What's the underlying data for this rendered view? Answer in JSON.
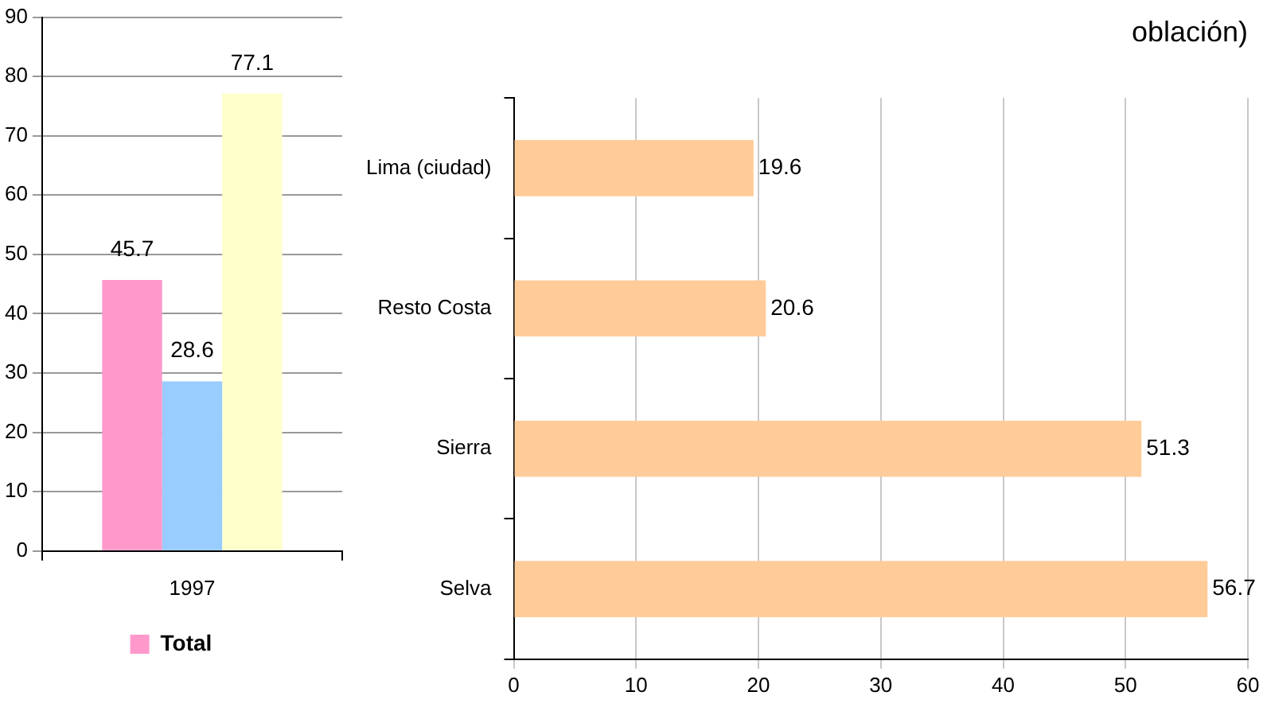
{
  "chart_data": [
    {
      "type": "bar",
      "categories": [
        "1997"
      ],
      "series": [
        {
          "name": "Total",
          "color": "#ff99cc",
          "values": [
            45.7
          ]
        },
        {
          "color": "#99ccff",
          "values": [
            28.6
          ]
        },
        {
          "color": "#ffffcc",
          "values": [
            77.1
          ]
        }
      ],
      "ylim": [
        0,
        90
      ],
      "yticks": [
        0,
        10,
        20,
        30,
        40,
        50,
        60,
        70,
        80,
        90
      ],
      "grid": "y",
      "legend": "bottom",
      "data_labels": true
    },
    {
      "type": "bar",
      "orientation": "horizontal",
      "title": "oblación)",
      "categories": [
        "Lima (ciudad)",
        "Resto Costa",
        "Sierra",
        "Selva"
      ],
      "values": [
        19.6,
        20.6,
        51.3,
        56.7
      ],
      "color": "#ffcc99",
      "xlim": [
        0,
        60
      ],
      "xticks": [
        0,
        10,
        20,
        30,
        40,
        50,
        60
      ],
      "grid": "x",
      "data_labels": true
    }
  ]
}
